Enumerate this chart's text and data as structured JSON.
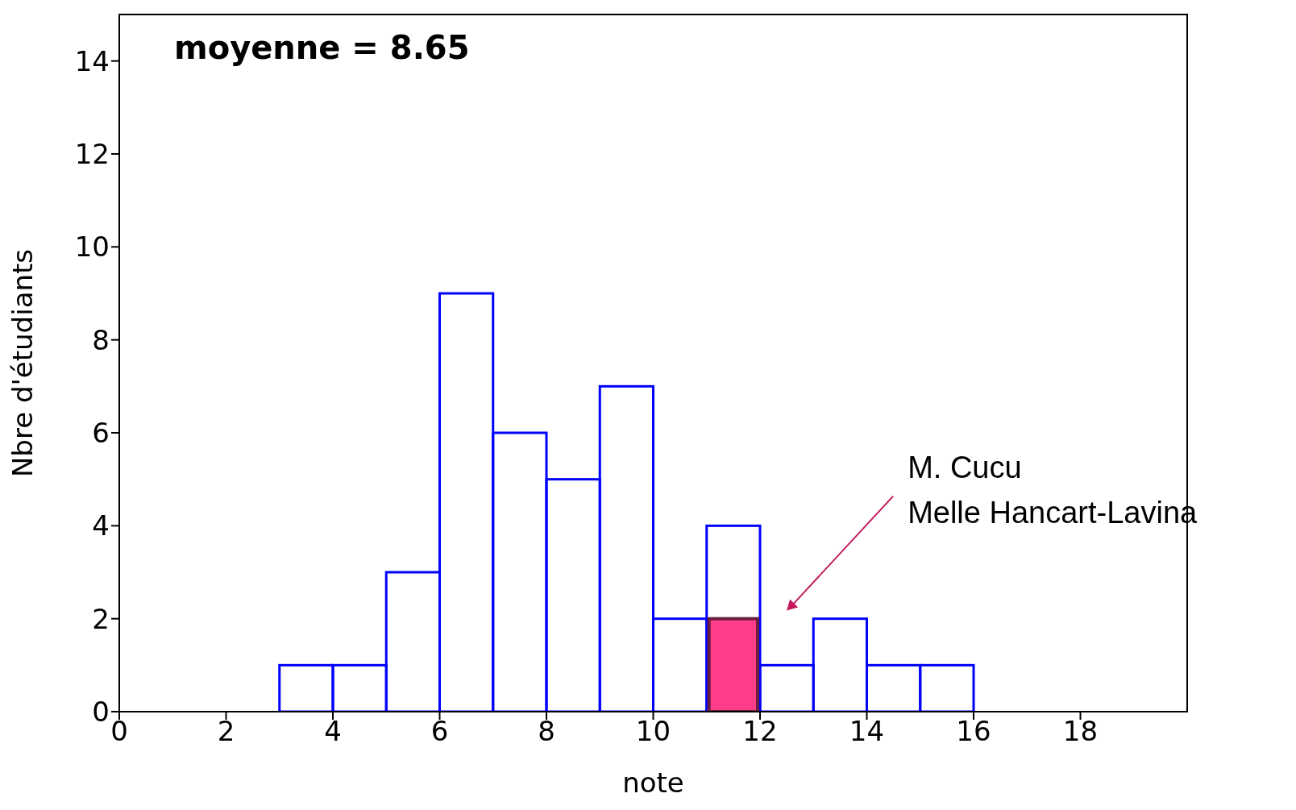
{
  "chart_data": {
    "type": "histogram",
    "xlabel": "note",
    "ylabel": "Nbre d'étudiants",
    "bins": [
      3,
      4,
      5,
      6,
      7,
      8,
      9,
      10,
      11,
      12,
      13,
      14,
      15,
      16
    ],
    "series": [
      {
        "color": "#0000ff",
        "values": [
          1,
          1,
          3,
          9,
          6,
          5,
          7,
          2,
          4,
          1,
          2,
          1,
          1
        ]
      },
      {
        "color": "#ff3d8b",
        "values": [
          null,
          null,
          null,
          null,
          null,
          null,
          null,
          null,
          2,
          null,
          null,
          null,
          null
        ]
      }
    ],
    "xlim": [
      0,
      20
    ],
    "xticks": [
      0,
      2,
      4,
      6,
      8,
      10,
      12,
      14,
      16,
      18
    ],
    "ylim": [
      0,
      15
    ],
    "yticks": [
      0,
      2,
      4,
      6,
      8,
      10,
      12,
      14
    ],
    "grid": false,
    "legend": false,
    "annotations": [
      "moyenne = 8.65",
      "M. Cucu\nMelle Hancart-Lavina"
    ]
  }
}
